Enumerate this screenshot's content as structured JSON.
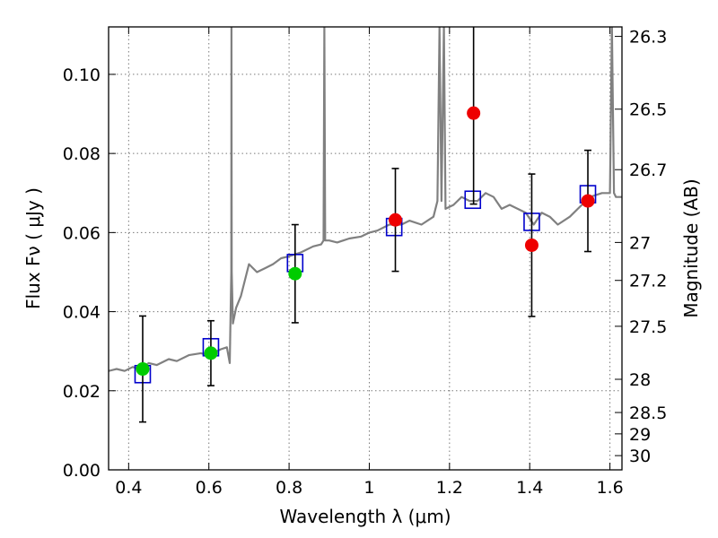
{
  "chart_data": {
    "type": "scatter",
    "xlabel": "Wavelength  λ (μm)",
    "ylabel": "Flux  Fν  ( μJy )",
    "y2label": "Magnitude (AB)",
    "xlim": [
      0.35,
      1.63
    ],
    "ylim": [
      0.0,
      0.112
    ],
    "grid": true,
    "x_ticks": [
      0.4,
      0.6,
      0.8,
      1.0,
      1.2,
      1.4,
      1.6
    ],
    "x_tick_labels": [
      "0.4",
      "0.6",
      "0.8",
      "1",
      "1.2",
      "1.4",
      "1.6"
    ],
    "y_ticks": [
      0.0,
      0.02,
      0.04,
      0.06,
      0.08,
      0.1
    ],
    "y_tick_labels": [
      "0.00",
      "0.02",
      "0.04",
      "0.06",
      "0.08",
      "0.10"
    ],
    "magnitude_ticks": [
      {
        "label": "26.3",
        "flux": 0.1096
      },
      {
        "label": "26.5",
        "flux": 0.0912
      },
      {
        "label": "26.7",
        "flux": 0.0759
      },
      {
        "label": "27",
        "flux": 0.0575
      },
      {
        "label": "27.2",
        "flux": 0.0479
      },
      {
        "label": "27.5",
        "flux": 0.0363
      },
      {
        "label": "28",
        "flux": 0.0229
      },
      {
        "label": "28.5",
        "flux": 0.0145
      },
      {
        "label": "29",
        "flux": 0.0091
      },
      {
        "label": "30",
        "flux": 0.0036
      }
    ],
    "colors": {
      "model": "#808080",
      "model_points": "#0000cc",
      "optical": "#00cc00",
      "nir": "#ee0000",
      "errorbar": "#000000",
      "grid": "#7a7a7a"
    },
    "model_spectrum": {
      "x": [
        0.35,
        0.37,
        0.39,
        0.41,
        0.43,
        0.45,
        0.47,
        0.5,
        0.52,
        0.55,
        0.58,
        0.6,
        0.63,
        0.645,
        0.652,
        0.656,
        0.6563,
        0.657,
        0.66,
        0.668,
        0.68,
        0.7,
        0.72,
        0.74,
        0.76,
        0.78,
        0.8,
        0.83,
        0.86,
        0.88,
        0.886,
        0.888,
        0.89,
        0.9,
        0.92,
        0.95,
        0.98,
        1.0,
        1.02,
        1.05,
        1.08,
        1.1,
        1.13,
        1.16,
        1.17,
        1.175,
        1.18,
        1.186,
        1.19,
        1.21,
        1.23,
        1.25,
        1.27,
        1.29,
        1.31,
        1.33,
        1.35,
        1.37,
        1.39,
        1.41,
        1.43,
        1.45,
        1.47,
        1.5,
        1.52,
        1.55,
        1.58,
        1.6,
        1.605,
        1.61,
        1.615,
        1.62,
        1.63
      ],
      "y": [
        0.025,
        0.0255,
        0.025,
        0.026,
        0.0255,
        0.027,
        0.0265,
        0.028,
        0.0275,
        0.029,
        0.0295,
        0.029,
        0.0305,
        0.031,
        0.027,
        0.05,
        0.112,
        0.05,
        0.037,
        0.041,
        0.044,
        0.052,
        0.05,
        0.051,
        0.052,
        0.0535,
        0.054,
        0.055,
        0.0565,
        0.057,
        0.058,
        0.112,
        0.058,
        0.058,
        0.0575,
        0.0585,
        0.059,
        0.06,
        0.0605,
        0.062,
        0.062,
        0.063,
        0.062,
        0.064,
        0.068,
        0.112,
        0.068,
        0.112,
        0.066,
        0.067,
        0.069,
        0.068,
        0.068,
        0.07,
        0.069,
        0.066,
        0.067,
        0.066,
        0.065,
        0.062,
        0.065,
        0.064,
        0.062,
        0.064,
        0.066,
        0.069,
        0.07,
        0.07,
        0.112,
        0.07,
        0.069,
        0.069,
        0.069
      ]
    },
    "series": [
      {
        "x": [
          0.435,
          0.605,
          0.815,
          1.062,
          1.258,
          1.405,
          1.545
        ],
        "y": [
          0.0242,
          0.031,
          0.0523,
          0.0614,
          0.0683,
          0.0627,
          0.0697
        ]
      },
      {
        "x": [
          0.435,
          0.605,
          0.815
        ],
        "y": [
          0.0255,
          0.0295,
          0.0496
        ],
        "yerr_low": [
          0.0134,
          0.0082,
          0.0124
        ],
        "yerr_high": [
          0.0134,
          0.0082,
          0.0124
        ]
      },
      {
        "x": [
          1.065,
          1.26,
          1.405,
          1.545
        ],
        "y": [
          0.0632,
          0.0902,
          0.0568,
          0.068
        ],
        "yerr_low": [
          0.013,
          0.023,
          0.018,
          0.0128
        ],
        "yerr_high": [
          0.013,
          0.023,
          0.018,
          0.0128
        ]
      }
    ]
  }
}
